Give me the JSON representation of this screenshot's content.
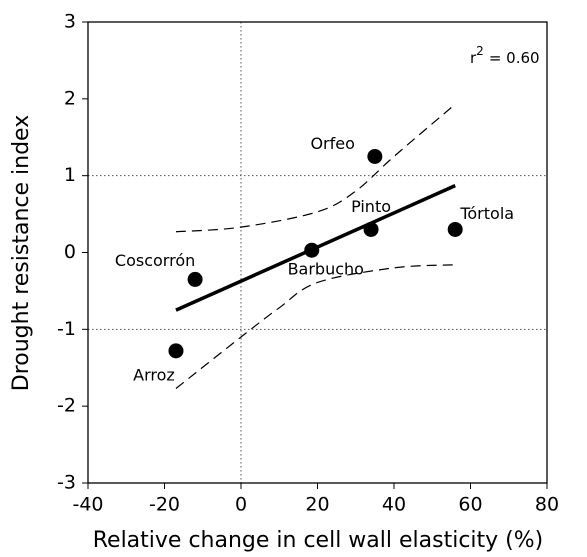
{
  "chart_data": {
    "type": "scatter",
    "x_label": "Relative change in cell wall elasticity (%)",
    "y_label": "Drought resistance index",
    "xlim": [
      -40,
      80
    ],
    "xticks": [
      -40,
      -20,
      0,
      20,
      40,
      60,
      80
    ],
    "ylim": [
      -3,
      3
    ],
    "yticks": [
      -3,
      -2,
      -1,
      0,
      1,
      2,
      3
    ],
    "ref_lines": {
      "x": [
        0
      ],
      "y": [
        1,
        -1
      ]
    },
    "points": {
      "labels": [
        "Orfeo",
        "Pinto",
        "Tórtola",
        "Barbucho",
        "Coscorrón",
        "Arroz"
      ],
      "x": [
        35,
        34,
        56,
        18.5,
        -12,
        -17
      ],
      "y": [
        1.25,
        0.3,
        0.3,
        0.03,
        -0.35,
        -1.28
      ],
      "color": "#000000"
    },
    "lines": [
      {
        "style": "solid",
        "x": [
          -17,
          56
        ],
        "y": [
          -0.75,
          0.87
        ]
      },
      {
        "style": "dashed",
        "x": [
          -17,
          0,
          20,
          30,
          40,
          56
        ],
        "y": [
          0.27,
          0.33,
          0.53,
          0.8,
          1.25,
          1.93
        ]
      },
      {
        "style": "dashed",
        "x": [
          -17,
          0,
          10,
          20,
          40,
          56
        ],
        "y": [
          -1.77,
          -1.1,
          -0.72,
          -0.39,
          -0.2,
          -0.16
        ]
      }
    ],
    "annotation": {
      "base": "r",
      "sup": "2",
      "rest": "= 0.60"
    }
  }
}
